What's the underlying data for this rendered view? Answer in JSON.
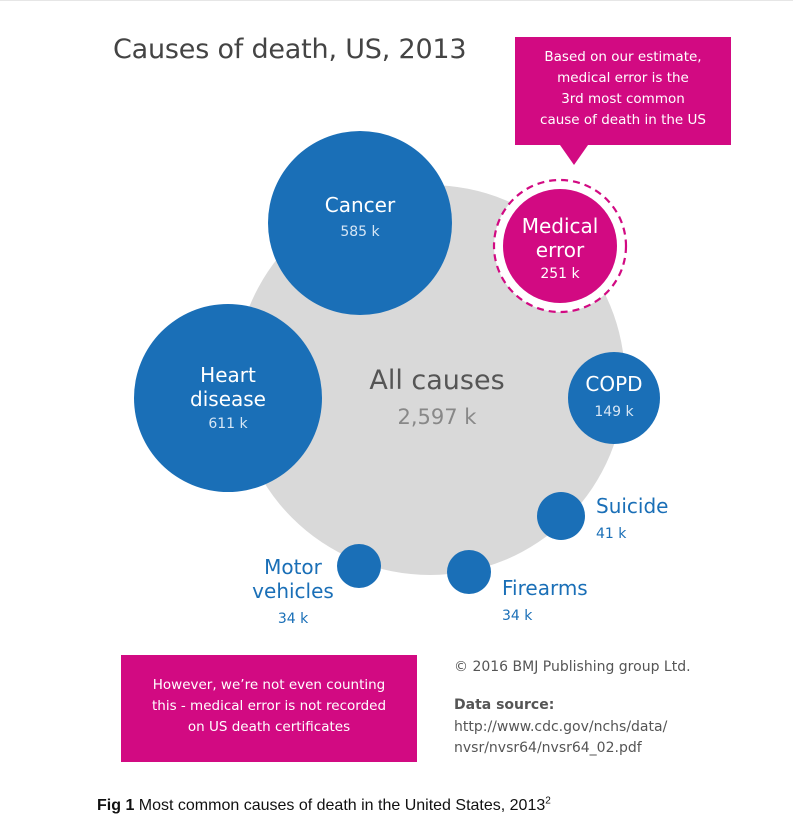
{
  "colors": {
    "bubble_blue": "#1a6fb7",
    "background_gray": "#d9d9d9",
    "magenta": "#d20a82",
    "label_blue": "#1a6fb7",
    "title_gray": "#444444"
  },
  "chart_data": {
    "type": "bubble",
    "title": "Causes of death, US, 2013",
    "unit": "k",
    "total": {
      "label": "All causes",
      "value_label": "2,597 k",
      "value": 2597
    },
    "causes": [
      {
        "name": "Heart disease",
        "lines": [
          "Heart",
          "disease"
        ],
        "value": 611,
        "value_label": "611 k",
        "color": "#1a6fb7",
        "label_inside": true
      },
      {
        "name": "Cancer",
        "lines": [
          "Cancer"
        ],
        "value": 585,
        "value_label": "585 k",
        "color": "#1a6fb7",
        "label_inside": true
      },
      {
        "name": "Medical error",
        "lines": [
          "Medical",
          "error"
        ],
        "value": 251,
        "value_label": "251 k",
        "color": "#d20a82",
        "label_inside": true,
        "dashed_ring": true
      },
      {
        "name": "COPD",
        "lines": [
          "COPD"
        ],
        "value": 149,
        "value_label": "149 k",
        "color": "#1a6fb7",
        "label_inside": true
      },
      {
        "name": "Suicide",
        "lines": [
          "Suicide"
        ],
        "value": 41,
        "value_label": "41 k",
        "color": "#1a6fb7",
        "label_inside": false
      },
      {
        "name": "Firearms",
        "lines": [
          "Firearms"
        ],
        "value": 34,
        "value_label": "34 k",
        "color": "#1a6fb7",
        "label_inside": false
      },
      {
        "name": "Motor vehicles",
        "lines": [
          "Motor",
          "vehicles"
        ],
        "value": 34,
        "value_label": "34 k",
        "color": "#1a6fb7",
        "label_inside": false
      }
    ]
  },
  "callout_top": "Based on our estimate,\nmedical error is the\n3rd most common\ncause of death in the US",
  "callout_bottom": "However, we’re not even counting\nthis - medical error is not recorded\non US death certificates",
  "credit": "© 2016 BMJ Publishing group Ltd.",
  "source": {
    "label": "Data source:",
    "line1": "http://www.cdc.gov/nchs/data/",
    "line2": "nvsr/nvsr64/nvsr64_02.pdf"
  },
  "caption": {
    "fig": "Fig 1",
    "text": " Most common causes of death in the United States, 2013",
    "ref": "2"
  }
}
